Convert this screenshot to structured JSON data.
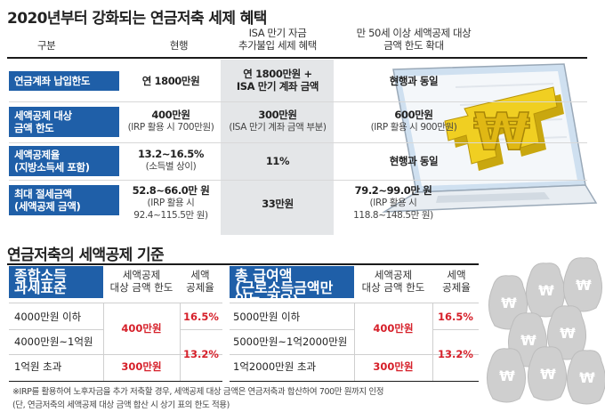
{
  "title": "2020년부터 강화되는 연금저축 세제 혜택",
  "table1": {
    "headers": {
      "col0": "구분",
      "col1": "현행",
      "col2_line1": "ISA 만기 자금",
      "col2_line2": "추가불입 세제 혜택",
      "col3_line1": "만 50세 이상 세액공제 대상",
      "col3_line2": "금액 한도 확대"
    },
    "rows": [
      {
        "label": "연금계좌 납입한도",
        "c1_main": "연 1800만원",
        "c2_main": "연 1800만원 +",
        "c2_sub": "ISA 만기 계좌 금액",
        "c3_main": "현행과 동일"
      },
      {
        "label_line1": "세액공제 대상",
        "label_line2": "금액 한도",
        "c1_main": "400만원",
        "c1_sub": "(IRP 활용 시 700만원)",
        "c2_main": "300만원",
        "c2_sub": "(ISA 만기 계좌 금액 부분)",
        "c3_main": "600만원",
        "c3_sub": "(IRP 활용 시 900만원)"
      },
      {
        "label_line1": "세액공제율",
        "label_line2": "(지방소득세 포함)",
        "c1_main": "13.2~16.5%",
        "c1_sub": "(소득별 상이)",
        "c2_main": "11%",
        "c3_main": "현행과 동일"
      },
      {
        "label_line1": "최대 절세금액",
        "label_line2": "(세액공제 금액)",
        "c1_main": "52.8~66.0만 원",
        "c1_sub1": "(IRP 활용 시",
        "c1_sub2": "92.4~115.5만 원)",
        "c2_main": "33만원",
        "c3_main": "79.2~99.0만 원",
        "c3_sub1": "(IRP 활용 시",
        "c3_sub2": "118.8~148.5만 원)"
      }
    ]
  },
  "section2_title": "연금저축의 세액공제 기준",
  "table2": {
    "h_col0_line1": "종합소득",
    "h_col0_line2": "과세표준",
    "h_col1_line1": "세액공제",
    "h_col1_line2": "대상 금액 한도",
    "h_col2_line1": "세액",
    "h_col2_line2": "공제율",
    "rows": [
      "4000만원 이하",
      "4000만원~1억원",
      "1억원 초과"
    ],
    "amount_a": "400만원",
    "amount_b": "300만원",
    "rate_a": "16.5%",
    "rate_b": "13.2%"
  },
  "table3": {
    "h_col0_line1": "총 급여액",
    "h_col0_line2": "(근로소득금액만 있는 경우)",
    "h_col1_line1": "세액공제",
    "h_col1_line2": "대상 금액 한도",
    "h_col2_line1": "세액",
    "h_col2_line2": "공제율",
    "rows": [
      "5000만원 이하",
      "5000만원~1억2000만원",
      "1억2000만원 초과"
    ],
    "amount_a": "400만원",
    "amount_b": "300만원",
    "rate_a": "16.5%",
    "rate_b": "13.2%"
  },
  "note_line1": "※IRP를 활용하여 노후자금을 추가 저축할 경우, 세액공제 대상 금액은 연금저축과 합산하여 700만 원까지 인정",
  "note_line2": "(단, 연금저축의 세액공제 대상 금액 합산 시 상기 표의 한도 적용)",
  "illustration": {
    "laptop_symbol": "₩",
    "bag_symbol": "₩",
    "accent_blue": "#1f5fa8",
    "accent_red": "#d6202a",
    "won_gold": "#e8c21a"
  }
}
